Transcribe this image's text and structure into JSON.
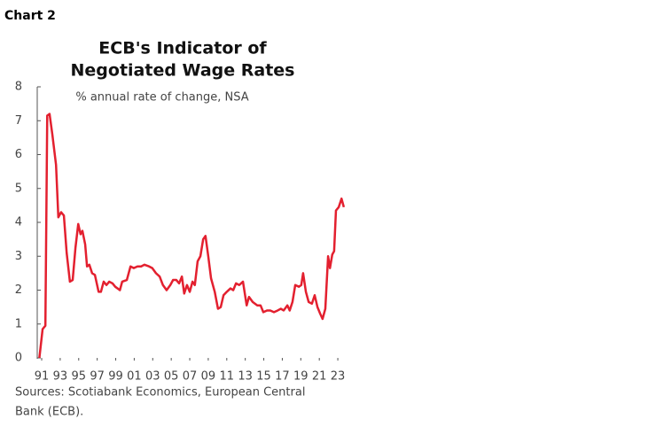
{
  "label": "Chart 2",
  "chart_data": {
    "type": "line",
    "title": [
      "ECB's Indicator of",
      "Negotiated Wage Rates"
    ],
    "subtitle": "% annual rate of change, NSA",
    "source": [
      "Sources: Scotiabank Economics, European Central",
      "Bank (ECB)."
    ],
    "color": "#e3202f",
    "x": [
      1990.75,
      1991.1,
      1991.4,
      1991.6,
      1991.85,
      1992.15,
      1992.55,
      1992.8,
      1993.1,
      1993.4,
      1993.7,
      1994.05,
      1994.35,
      1994.65,
      1994.95,
      1995.2,
      1995.4,
      1995.7,
      1995.9,
      1996.15,
      1996.45,
      1996.75,
      1997.15,
      1997.4,
      1997.7,
      1998.0,
      1998.3,
      1998.65,
      1998.95,
      1999.45,
      1999.7,
      2000.2,
      2000.6,
      2000.95,
      2001.35,
      2001.75,
      2002.1,
      2002.6,
      2002.95,
      2003.35,
      2003.75,
      2004.1,
      2004.5,
      2004.9,
      2005.2,
      2005.55,
      2005.85,
      2006.15,
      2006.4,
      2006.7,
      2007.0,
      2007.3,
      2007.55,
      2007.85,
      2008.15,
      2008.45,
      2008.7,
      2009.0,
      2009.3,
      2009.7,
      2010.05,
      2010.35,
      2010.65,
      2011.0,
      2011.4,
      2011.7,
      2012.0,
      2012.35,
      2012.75,
      2013.15,
      2013.4,
      2013.8,
      2014.3,
      2014.65,
      2014.95,
      2015.35,
      2015.7,
      2016.1,
      2016.5,
      2016.85,
      2017.15,
      2017.55,
      2017.8,
      2018.1,
      2018.4,
      2018.8,
      2019.05,
      2019.25,
      2019.55,
      2019.85,
      2020.2,
      2020.5,
      2020.8,
      2021.1,
      2021.35,
      2021.65,
      2021.95,
      2022.15,
      2022.4,
      2022.6,
      2022.8,
      2023.1,
      2023.4,
      2023.65
    ],
    "values": [
      0,
      0.85,
      0.95,
      7.15,
      7.2,
      6.6,
      5.7,
      4.15,
      4.3,
      4.2,
      3.1,
      2.25,
      2.3,
      3.25,
      3.95,
      3.65,
      3.75,
      3.35,
      2.7,
      2.75,
      2.5,
      2.45,
      1.95,
      1.95,
      2.25,
      2.15,
      2.25,
      2.2,
      2.1,
      2.0,
      2.25,
      2.3,
      2.7,
      2.65,
      2.7,
      2.7,
      2.75,
      2.7,
      2.65,
      2.5,
      2.4,
      2.15,
      2.0,
      2.15,
      2.3,
      2.3,
      2.2,
      2.4,
      1.9,
      2.15,
      1.95,
      2.25,
      2.15,
      2.85,
      3.0,
      3.5,
      3.6,
      3.0,
      2.35,
      1.95,
      1.45,
      1.5,
      1.85,
      1.95,
      2.05,
      2.0,
      2.2,
      2.15,
      2.25,
      1.55,
      1.8,
      1.65,
      1.55,
      1.55,
      1.35,
      1.4,
      1.4,
      1.35,
      1.4,
      1.45,
      1.4,
      1.55,
      1.4,
      1.65,
      2.15,
      2.1,
      2.15,
      2.5,
      1.95,
      1.65,
      1.6,
      1.85,
      1.5,
      1.3,
      1.15,
      1.45,
      3.0,
      2.65,
      3.05,
      3.15,
      4.35,
      4.45,
      4.7,
      4.45
    ],
    "xlim": [
      1990.5,
      2024
    ],
    "xticks": [
      {
        "value": 1991,
        "label": "91"
      },
      {
        "value": 1993,
        "label": "93"
      },
      {
        "value": 1995,
        "label": "95"
      },
      {
        "value": 1997,
        "label": "97"
      },
      {
        "value": 1999,
        "label": "99"
      },
      {
        "value": 2001,
        "label": "01"
      },
      {
        "value": 2003,
        "label": "03"
      },
      {
        "value": 2005,
        "label": "05"
      },
      {
        "value": 2007,
        "label": "07"
      },
      {
        "value": 2009,
        "label": "09"
      },
      {
        "value": 2011,
        "label": "11"
      },
      {
        "value": 2013,
        "label": "13"
      },
      {
        "value": 2015,
        "label": "15"
      },
      {
        "value": 2017,
        "label": "17"
      },
      {
        "value": 2019,
        "label": "19"
      },
      {
        "value": 2021,
        "label": "21"
      },
      {
        "value": 2023,
        "label": "23"
      }
    ],
    "ylim": [
      0,
      8
    ],
    "yticks": [
      0,
      1,
      2,
      3,
      4,
      5,
      6,
      7,
      8
    ]
  }
}
